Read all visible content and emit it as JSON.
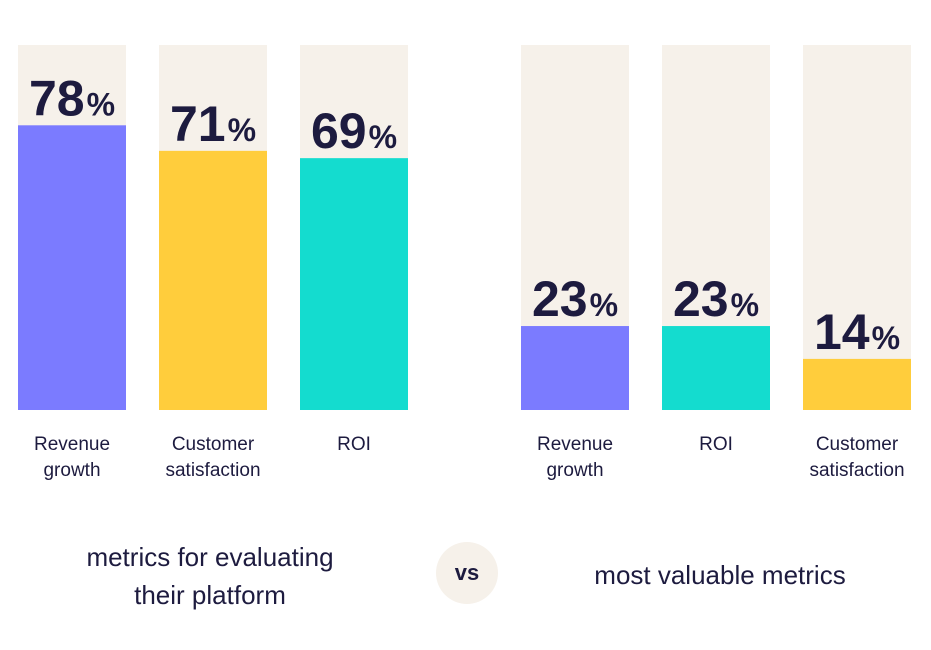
{
  "chart_data": [
    {
      "type": "bar",
      "title": "",
      "caption_lines": [
        "metrics for evaluating",
        "their platform"
      ],
      "categories": [
        [
          "Revenue",
          "growth"
        ],
        [
          "Customer",
          "satisfaction"
        ],
        [
          "ROI"
        ]
      ],
      "values": [
        78,
        71,
        69
      ],
      "value_suffix": "%",
      "ylim": [
        0,
        100
      ],
      "colors": [
        "#7b7bff",
        "#ffcd3c",
        "#14dccf"
      ],
      "track_color": "#f6f1ea",
      "grid": false
    },
    {
      "type": "bar",
      "title": "",
      "caption_lines": [
        "most valuable metrics"
      ],
      "categories": [
        [
          "Revenue",
          "growth"
        ],
        [
          "ROI"
        ],
        [
          "Customer",
          "satisfaction"
        ]
      ],
      "values": [
        23,
        23,
        14
      ],
      "value_suffix": "%",
      "ylim": [
        0,
        100
      ],
      "colors": [
        "#7b7bff",
        "#14dccf",
        "#ffcd3c"
      ],
      "track_color": "#f6f1ea",
      "grid": false
    }
  ],
  "vs_label": "vs"
}
